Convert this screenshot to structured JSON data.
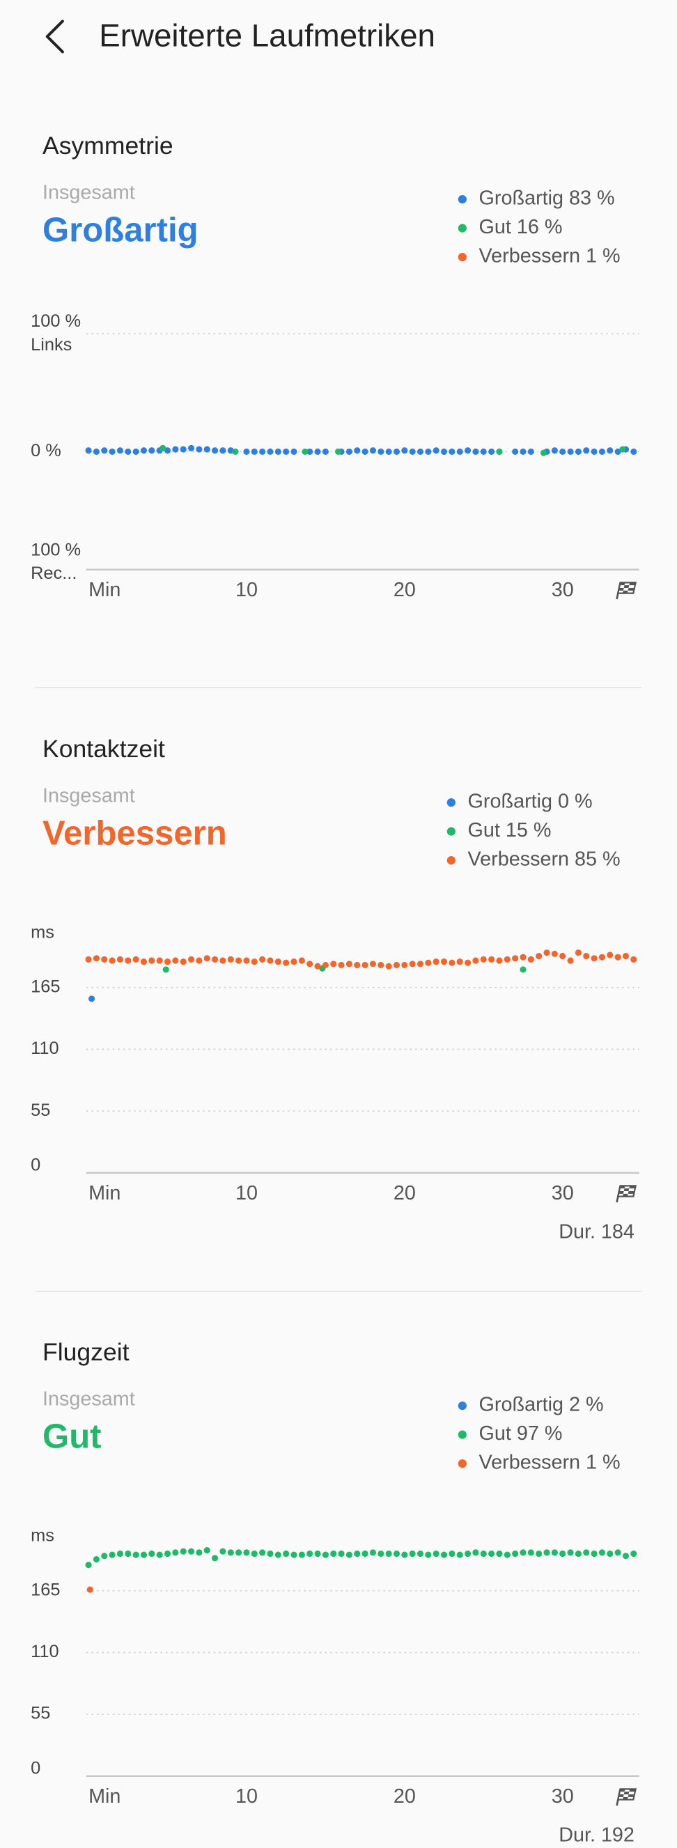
{
  "header": {
    "title": "Erweiterte Laufmetriken"
  },
  "chart_data": [
    {
      "type": "scatter",
      "title": "Asymmetrie",
      "subtitle": "Insgesamt",
      "rating": "Großartig",
      "rating_color": "#2f7fe0",
      "y_top_label": "Links",
      "y_bottom_label": "Rec...",
      "xlim": [
        0,
        34.7
      ],
      "xticks": [
        {
          "value": 0,
          "label": "Min"
        },
        10,
        20,
        30
      ],
      "ylim": [
        -100,
        100
      ],
      "yticks": [
        {
          "value": -100,
          "label": "100 %"
        },
        {
          "value": 0,
          "label": "0 %"
        },
        {
          "value": 100,
          "label": "100 %"
        }
      ],
      "grid": true,
      "series": [
        {
          "name": "Großartig 83 %",
          "color": "#2f7fe0",
          "x": [
            0,
            0.5,
            1,
            1.5,
            2,
            2.5,
            3,
            3.5,
            4,
            4.5,
            5,
            5.5,
            6,
            6.5,
            7,
            7.5,
            8,
            8.5,
            9,
            10,
            10.5,
            11,
            11.5,
            12,
            12.5,
            13,
            14,
            14.5,
            15,
            16,
            16.5,
            17,
            17.5,
            18,
            18.5,
            19,
            19.5,
            20,
            20.5,
            21,
            21.5,
            22,
            22.5,
            23,
            23.5,
            24,
            24.5,
            25,
            25.5,
            26,
            27,
            27.5,
            28,
            29,
            29.5,
            30,
            30.5,
            31,
            31.5,
            32,
            32.5,
            33,
            33.5,
            34,
            34.5
          ],
          "values": [
            1,
            0,
            1,
            0,
            1,
            0,
            0,
            1,
            1,
            1,
            1,
            2,
            2,
            3,
            2,
            2,
            1,
            1,
            1,
            0,
            0,
            0,
            0,
            0,
            0,
            0,
            0,
            0,
            0,
            0,
            0,
            1,
            0,
            1,
            0,
            0,
            0,
            1,
            0,
            0,
            0,
            1,
            0,
            0,
            0,
            1,
            0,
            0,
            0,
            0,
            0,
            0,
            0,
            0,
            1,
            0,
            0,
            0,
            1,
            0,
            0,
            1,
            0,
            2,
            0
          ]
        },
        {
          "name": "Gut 16 %",
          "color": "#22b86a",
          "x": [
            4.7,
            9.3,
            13.7,
            15.8,
            26,
            28.8,
            33.8
          ],
          "values": [
            3,
            0,
            0,
            0,
            0,
            -1,
            2
          ]
        },
        {
          "name": "Verbessern 1 %",
          "color": "#f2652b",
          "x": [],
          "values": []
        }
      ]
    },
    {
      "type": "scatter",
      "title": "Kontaktzeit",
      "subtitle": "Insgesamt",
      "rating": "Verbessern",
      "rating_color": "#f2652b",
      "y_unit": "ms",
      "footer": "Dur. 184",
      "xlim": [
        0,
        34.7
      ],
      "xticks": [
        {
          "value": 0,
          "label": "Min"
        },
        10,
        20,
        30
      ],
      "ylim": [
        0,
        210
      ],
      "yticks": [
        0,
        55,
        110,
        165
      ],
      "grid": true,
      "series": [
        {
          "name": "Großartig 0 %",
          "color": "#2f7fe0",
          "x": [
            0.2
          ],
          "values": [
            155
          ]
        },
        {
          "name": "Gut 15 %",
          "color": "#22b86a",
          "x": [
            4.9,
            14.8,
            27.5
          ],
          "values": [
            181,
            182,
            181
          ]
        },
        {
          "name": "Verbessern 85 %",
          "color": "#f2652b",
          "x": [
            0,
            0.5,
            1,
            1.5,
            2,
            2.5,
            3,
            3.5,
            4,
            4.5,
            5,
            5.5,
            6,
            6.5,
            7,
            7.5,
            8,
            8.5,
            9,
            9.5,
            10,
            10.5,
            11,
            11.5,
            12,
            12.5,
            13,
            13.5,
            14,
            14.5,
            15,
            15.5,
            16,
            16.5,
            17,
            17.5,
            18,
            18.5,
            19,
            19.5,
            20,
            20.5,
            21,
            21.5,
            22,
            22.5,
            23,
            23.5,
            24,
            24.5,
            25,
            25.5,
            26,
            26.5,
            27,
            27.5,
            28,
            28.5,
            29,
            29.5,
            30,
            30.5,
            31,
            31.5,
            32,
            32.5,
            33,
            33.5,
            34,
            34.5
          ],
          "values": [
            190,
            191,
            190,
            189,
            190,
            189,
            190,
            188,
            189,
            189,
            188,
            189,
            188,
            190,
            189,
            191,
            190,
            189,
            190,
            189,
            189,
            188,
            190,
            189,
            188,
            187,
            188,
            189,
            186,
            184,
            185,
            186,
            185,
            186,
            185,
            185,
            186,
            185,
            184,
            185,
            185,
            186,
            186,
            187,
            188,
            188,
            187,
            188,
            187,
            189,
            190,
            190,
            189,
            190,
            191,
            192,
            190,
            193,
            196,
            195,
            193,
            189,
            196,
            193,
            191,
            192,
            194,
            192,
            193,
            190
          ]
        }
      ]
    },
    {
      "type": "scatter",
      "title": "Flugzeit",
      "subtitle": "Insgesamt",
      "rating": "Gut",
      "rating_color": "#22b86a",
      "y_unit": "ms",
      "footer": "Dur. 192",
      "xlim": [
        0,
        34.7
      ],
      "xticks": [
        {
          "value": 0,
          "label": "Min"
        },
        10,
        20,
        30
      ],
      "ylim": [
        0,
        210
      ],
      "yticks": [
        0,
        55,
        110,
        165
      ],
      "grid": true,
      "series": [
        {
          "name": "Großartig 2 %",
          "color": "#2f7fe0",
          "x": [],
          "values": []
        },
        {
          "name": "Gut 97 %",
          "color": "#22b86a",
          "x": [
            0,
            0.5,
            1,
            1.5,
            2,
            2.5,
            3,
            3.5,
            4,
            4.5,
            5,
            5.5,
            6,
            6.5,
            7,
            7.5,
            8,
            8.5,
            9,
            9.5,
            10,
            10.5,
            11,
            11.5,
            12,
            12.5,
            13,
            13.5,
            14,
            14.5,
            15,
            15.5,
            16,
            16.5,
            17,
            17.5,
            18,
            18.5,
            19,
            19.5,
            20,
            20.5,
            21,
            21.5,
            22,
            22.5,
            23,
            23.5,
            24,
            24.5,
            25,
            25.5,
            26,
            26.5,
            27,
            27.5,
            28,
            28.5,
            29,
            29.5,
            30,
            30.5,
            31,
            31.5,
            32,
            32.5,
            33,
            33.5,
            34,
            34.5
          ],
          "values": [
            188,
            193,
            196,
            197,
            198,
            198,
            197,
            197,
            198,
            197,
            198,
            199,
            200,
            200,
            199,
            201,
            194,
            200,
            199,
            199,
            199,
            198,
            199,
            198,
            197,
            198,
            197,
            197,
            198,
            198,
            197,
            198,
            198,
            197,
            198,
            198,
            199,
            198,
            198,
            198,
            197,
            198,
            198,
            197,
            198,
            197,
            198,
            197,
            198,
            199,
            198,
            198,
            198,
            197,
            198,
            199,
            199,
            198,
            199,
            199,
            198,
            199,
            198,
            199,
            198,
            199,
            198,
            199,
            196,
            198
          ]
        },
        {
          "name": "Verbessern 1 %",
          "color": "#f2652b",
          "x": [
            0.1
          ],
          "values": [
            166
          ]
        }
      ]
    }
  ]
}
